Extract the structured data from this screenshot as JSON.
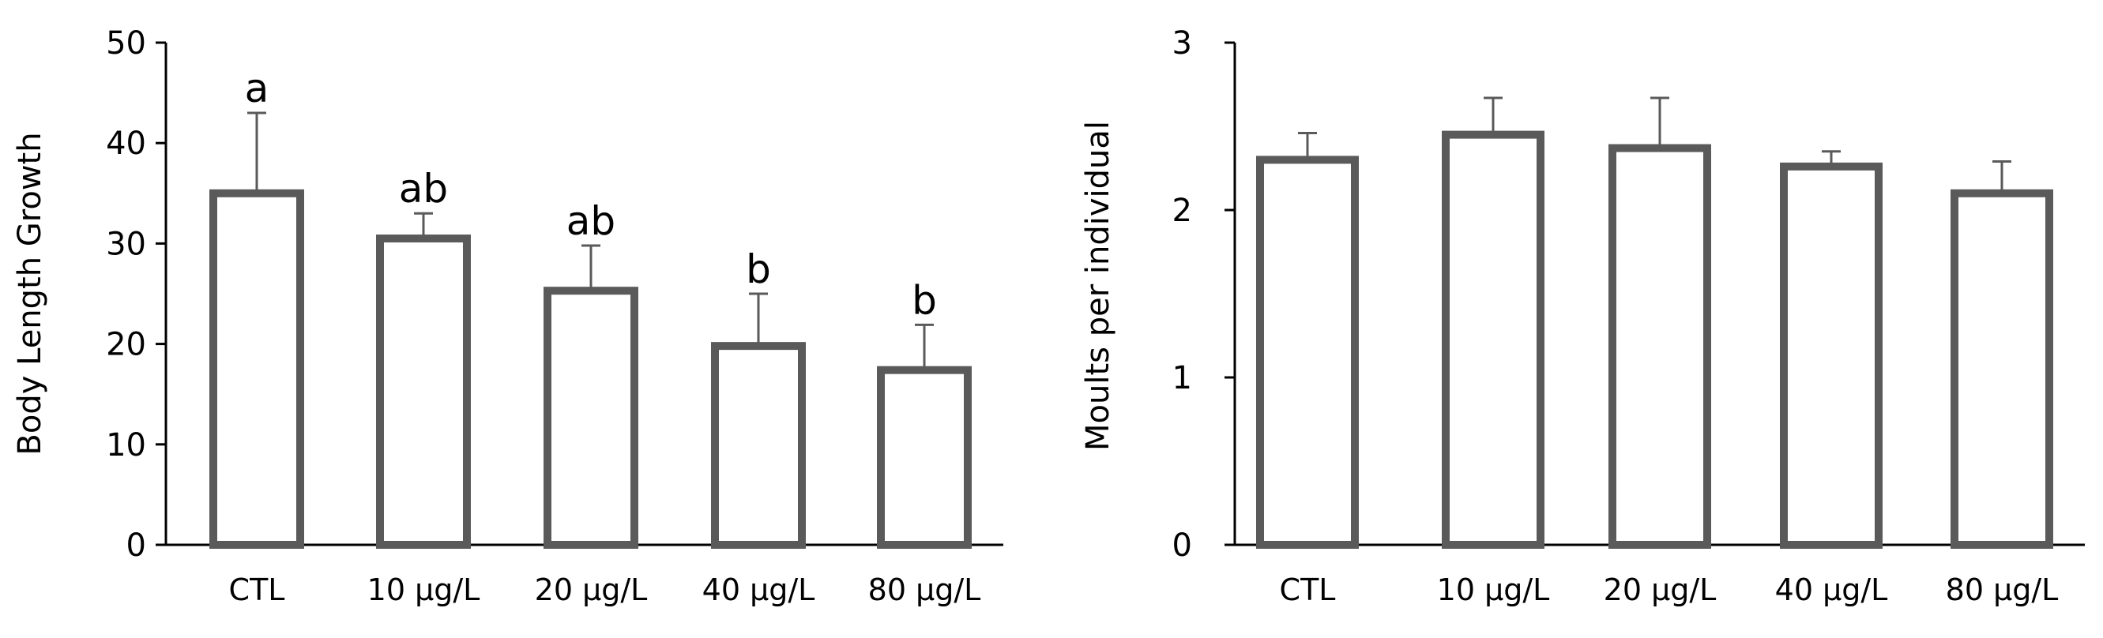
{
  "colors": {
    "bar_stroke": "#5a5a5a",
    "bar_fill": "#ffffff",
    "axis": "#000000",
    "error_bar": "#5a5a5a"
  },
  "chart_data": [
    {
      "type": "bar",
      "title": "",
      "xlabel": "",
      "ylabel": "Body Length Growth",
      "categories": [
        "CTL",
        "10 µg/L",
        "20 µg/L",
        "40 µg/L",
        "80 µg/L"
      ],
      "values": [
        35,
        30.5,
        25.3,
        19.8,
        17.4
      ],
      "errors": [
        8,
        2.5,
        4.5,
        5.2,
        4.5
      ],
      "annotations": [
        "a",
        "ab",
        "ab",
        "b",
        "b"
      ],
      "ylim": [
        0,
        50
      ],
      "yticks": [
        "0",
        "10",
        "20",
        "30",
        "40",
        "50"
      ],
      "ytick_values": [
        0,
        10,
        20,
        30,
        40,
        50
      ],
      "grid": false
    },
    {
      "type": "bar",
      "title": "",
      "xlabel": "",
      "ylabel": "Moults per individual",
      "categories": [
        "CTL",
        "10 µg/L",
        "20 µg/L",
        "40 µg/L",
        "80 µg/L"
      ],
      "values": [
        2.3,
        2.45,
        2.37,
        2.26,
        2.1
      ],
      "errors": [
        0.16,
        0.22,
        0.3,
        0.09,
        0.19
      ],
      "annotations": [],
      "ylim": [
        0,
        3
      ],
      "yticks": [
        "0",
        "1",
        "2",
        "3"
      ],
      "ytick_values": [
        0,
        1,
        2,
        3
      ],
      "grid": false
    }
  ]
}
